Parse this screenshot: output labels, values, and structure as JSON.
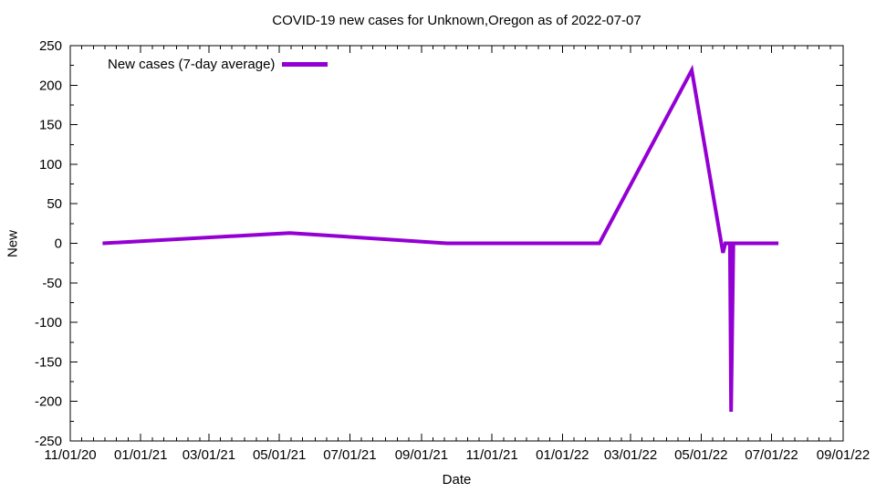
{
  "chart_data": {
    "type": "line",
    "title": "COVID-19 new cases for Unknown,Oregon as of 2022-07-07",
    "xlabel": "Date",
    "ylabel": "New",
    "grid": false,
    "background_color": "#ffffff",
    "border_color": "#000000",
    "legend": {
      "position": "top-left-inside",
      "entries": [
        {
          "label": "New cases (7-day average)",
          "color": "#9400d3"
        }
      ]
    },
    "x_range": [
      "2020-11-01",
      "2022-09-01"
    ],
    "y_range": [
      -250,
      250
    ],
    "x_ticks": [
      {
        "date": "2020-11-01",
        "label": "11/01/20"
      },
      {
        "date": "2021-01-01",
        "label": "01/01/21"
      },
      {
        "date": "2021-03-01",
        "label": "03/01/21"
      },
      {
        "date": "2021-05-01",
        "label": "05/01/21"
      },
      {
        "date": "2021-07-01",
        "label": "07/01/21"
      },
      {
        "date": "2021-09-01",
        "label": "09/01/21"
      },
      {
        "date": "2021-11-01",
        "label": "11/01/21"
      },
      {
        "date": "2022-01-01",
        "label": "01/01/22"
      },
      {
        "date": "2022-03-01",
        "label": "03/01/22"
      },
      {
        "date": "2022-05-01",
        "label": "05/01/22"
      },
      {
        "date": "2022-07-01",
        "label": "07/01/22"
      },
      {
        "date": "2022-09-01",
        "label": "09/01/22"
      }
    ],
    "y_ticks": [
      {
        "value": 250,
        "label": "250"
      },
      {
        "value": 200,
        "label": "200"
      },
      {
        "value": 150,
        "label": "150"
      },
      {
        "value": 100,
        "label": "100"
      },
      {
        "value": 50,
        "label": "50"
      },
      {
        "value": 0,
        "label": "0"
      },
      {
        "value": -50,
        "label": "-50"
      },
      {
        "value": -100,
        "label": "-100"
      },
      {
        "value": -150,
        "label": "-150"
      },
      {
        "value": -200,
        "label": "-200"
      },
      {
        "value": -250,
        "label": "-250"
      }
    ],
    "series": [
      {
        "name": "New cases (7-day average)",
        "color": "#9400d3",
        "line_width": 4,
        "points": [
          {
            "date": "2020-11-29",
            "value": 0
          },
          {
            "date": "2021-05-10",
            "value": 13
          },
          {
            "date": "2021-09-23",
            "value": 0
          },
          {
            "date": "2022-02-02",
            "value": 0
          },
          {
            "date": "2022-04-23",
            "value": 219
          },
          {
            "date": "2022-05-20",
            "value": -12
          },
          {
            "date": "2022-05-22",
            "value": 0
          },
          {
            "date": "2022-05-26",
            "value": 0
          },
          {
            "date": "2022-05-27",
            "value": -213
          },
          {
            "date": "2022-05-29",
            "value": 0
          },
          {
            "date": "2022-07-07",
            "value": 0
          }
        ]
      }
    ]
  }
}
